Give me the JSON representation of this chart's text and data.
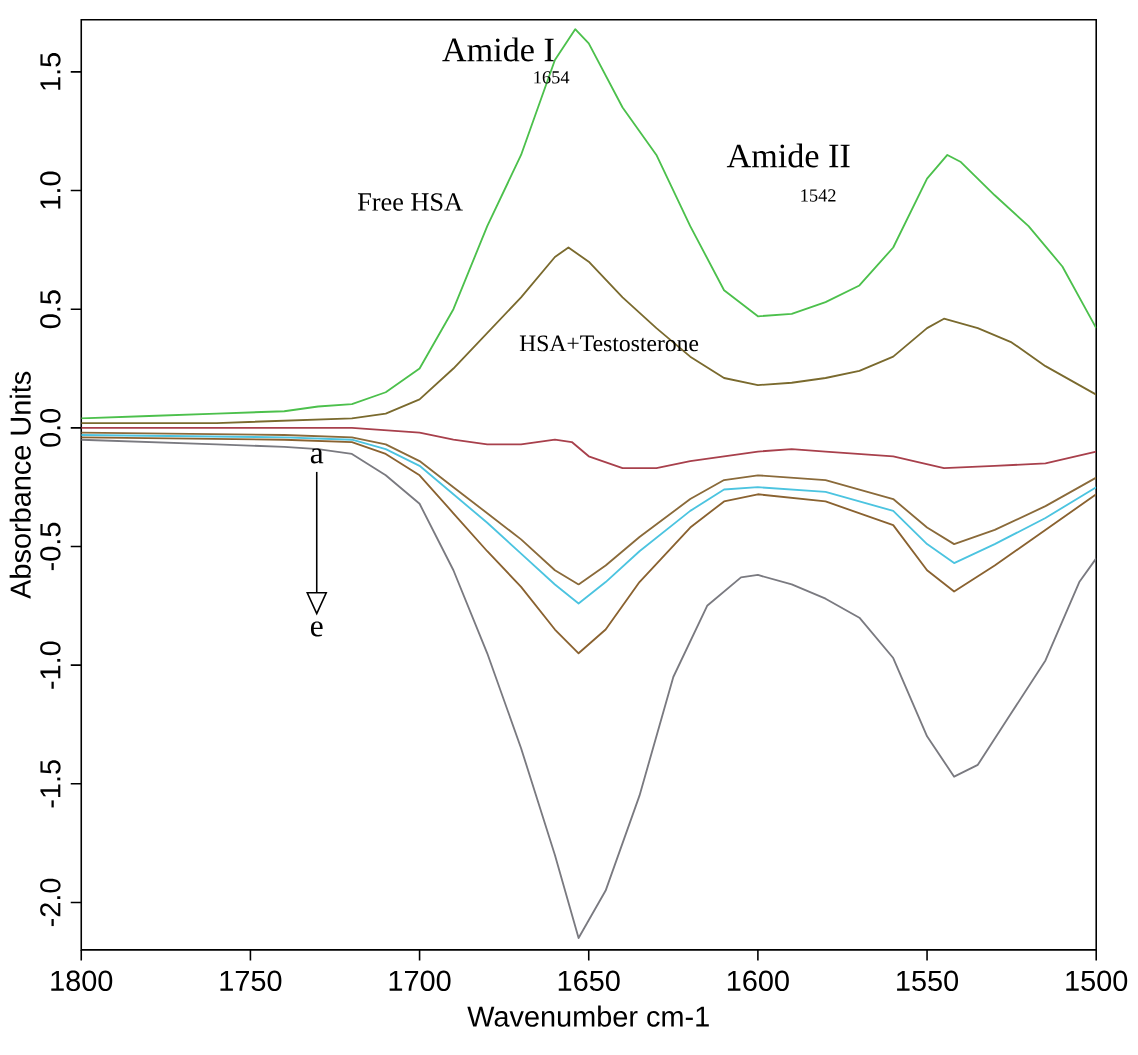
{
  "chart_data": {
    "type": "line",
    "xlabel": "Wavenumber cm-1",
    "ylabel": "Absorbance Units",
    "xlim": [
      1800,
      1500
    ],
    "ylim": [
      -2.2,
      1.72
    ],
    "xticks": [
      1800,
      1750,
      1700,
      1650,
      1600,
      1550,
      1500
    ],
    "yticks": [
      {
        "value": -2.0,
        "label": "-2.0"
      },
      {
        "value": -1.5,
        "label": "-1.5"
      },
      {
        "value": -1.0,
        "label": "-1.0"
      },
      {
        "value": -0.5,
        "label": "-0.5"
      },
      {
        "value": 0.0,
        "label": "0.0"
      },
      {
        "value": 0.5,
        "label": "0.5"
      },
      {
        "value": 1.0,
        "label": "1.0"
      },
      {
        "value": 1.5,
        "label": "1.5"
      }
    ],
    "grid": false,
    "marker": "none",
    "line_style": "solid",
    "series": [
      {
        "color": "#4cc04c",
        "x": [
          1800,
          1780,
          1760,
          1740,
          1730,
          1720,
          1710,
          1700,
          1690,
          1680,
          1670,
          1660,
          1654,
          1650,
          1640,
          1630,
          1620,
          1610,
          1600,
          1590,
          1580,
          1570,
          1560,
          1550,
          1544,
          1540,
          1530,
          1520,
          1510,
          1500
        ],
        "values": [
          0.04,
          0.05,
          0.06,
          0.07,
          0.09,
          0.1,
          0.15,
          0.25,
          0.5,
          0.85,
          1.15,
          1.55,
          1.68,
          1.62,
          1.35,
          1.15,
          0.85,
          0.58,
          0.47,
          0.48,
          0.53,
          0.6,
          0.76,
          1.05,
          1.15,
          1.12,
          0.98,
          0.85,
          0.68,
          0.42
        ]
      },
      {
        "color": "#7a6a2e",
        "x": [
          1800,
          1760,
          1720,
          1710,
          1700,
          1690,
          1680,
          1670,
          1660,
          1656,
          1650,
          1640,
          1630,
          1620,
          1610,
          1600,
          1590,
          1580,
          1570,
          1560,
          1550,
          1545,
          1535,
          1525,
          1515,
          1500
        ],
        "values": [
          0.02,
          0.02,
          0.04,
          0.06,
          0.12,
          0.25,
          0.4,
          0.55,
          0.72,
          0.76,
          0.7,
          0.55,
          0.42,
          0.3,
          0.21,
          0.18,
          0.19,
          0.21,
          0.24,
          0.3,
          0.42,
          0.46,
          0.42,
          0.36,
          0.26,
          0.14
        ]
      },
      {
        "color": "#a8404c",
        "x": [
          1800,
          1720,
          1700,
          1690,
          1680,
          1670,
          1660,
          1655,
          1650,
          1640,
          1630,
          1620,
          1600,
          1590,
          1580,
          1560,
          1545,
          1530,
          1515,
          1500
        ],
        "values": [
          0.0,
          0.0,
          -0.02,
          -0.05,
          -0.07,
          -0.07,
          -0.05,
          -0.06,
          -0.12,
          -0.17,
          -0.17,
          -0.14,
          -0.1,
          -0.09,
          -0.1,
          -0.12,
          -0.17,
          -0.16,
          -0.15,
          -0.1
        ]
      },
      {
        "color": "#8a6a3a",
        "x": [
          1800,
          1740,
          1720,
          1710,
          1700,
          1690,
          1680,
          1670,
          1660,
          1653,
          1645,
          1635,
          1620,
          1610,
          1600,
          1580,
          1560,
          1550,
          1542,
          1530,
          1515,
          1500
        ],
        "values": [
          -0.02,
          -0.03,
          -0.04,
          -0.07,
          -0.14,
          -0.25,
          -0.36,
          -0.47,
          -0.6,
          -0.66,
          -0.58,
          -0.46,
          -0.3,
          -0.22,
          -0.2,
          -0.22,
          -0.3,
          -0.42,
          -0.49,
          -0.43,
          -0.33,
          -0.21
        ]
      },
      {
        "color": "#4cc4e0",
        "x": [
          1800,
          1740,
          1720,
          1710,
          1700,
          1690,
          1680,
          1670,
          1660,
          1653,
          1645,
          1635,
          1620,
          1610,
          1600,
          1580,
          1560,
          1550,
          1542,
          1530,
          1515,
          1500
        ],
        "values": [
          -0.03,
          -0.04,
          -0.05,
          -0.09,
          -0.16,
          -0.28,
          -0.4,
          -0.53,
          -0.66,
          -0.74,
          -0.65,
          -0.52,
          -0.35,
          -0.26,
          -0.25,
          -0.27,
          -0.35,
          -0.49,
          -0.57,
          -0.49,
          -0.38,
          -0.25
        ]
      },
      {
        "color": "#8a6230",
        "x": [
          1800,
          1740,
          1720,
          1710,
          1700,
          1690,
          1680,
          1670,
          1660,
          1653,
          1645,
          1635,
          1620,
          1610,
          1600,
          1580,
          1560,
          1550,
          1542,
          1530,
          1515,
          1500
        ],
        "values": [
          -0.04,
          -0.05,
          -0.06,
          -0.11,
          -0.2,
          -0.36,
          -0.52,
          -0.67,
          -0.85,
          -0.95,
          -0.85,
          -0.65,
          -0.42,
          -0.31,
          -0.28,
          -0.31,
          -0.41,
          -0.6,
          -0.69,
          -0.58,
          -0.43,
          -0.28
        ]
      },
      {
        "color": "#7a7a80",
        "x": [
          1800,
          1760,
          1740,
          1730,
          1720,
          1710,
          1700,
          1690,
          1680,
          1670,
          1660,
          1653,
          1645,
          1635,
          1625,
          1615,
          1605,
          1600,
          1590,
          1580,
          1570,
          1560,
          1550,
          1542,
          1535,
          1525,
          1515,
          1505,
          1500
        ],
        "values": [
          -0.05,
          -0.07,
          -0.08,
          -0.09,
          -0.11,
          -0.2,
          -0.32,
          -0.6,
          -0.95,
          -1.35,
          -1.8,
          -2.15,
          -1.95,
          -1.55,
          -1.05,
          -0.75,
          -0.63,
          -0.62,
          -0.66,
          -0.72,
          -0.8,
          -0.97,
          -1.3,
          -1.47,
          -1.42,
          -1.2,
          -0.98,
          -0.65,
          -0.55
        ]
      }
    ],
    "annotations": [
      "Amide I",
      "1654",
      "Amide II",
      "1542",
      "Free HSA",
      "HSA+Testosterone",
      "a",
      "e"
    ]
  }
}
